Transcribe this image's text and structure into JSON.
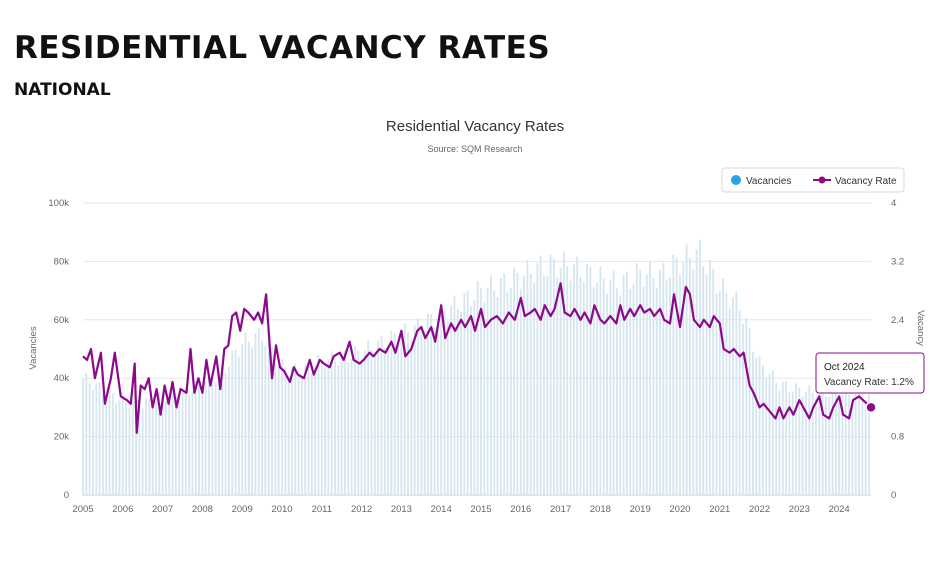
{
  "slide": {
    "title": "RESIDENTIAL VACANCY RATES",
    "subtitle": "NATIONAL"
  },
  "chart_data": {
    "type": "bar+line",
    "title": "Residential Vacancy Rates",
    "subtitle": "Source: SQM Research",
    "y_left_label": "Vacancies",
    "y_right_label": "Vacancy",
    "y_left_ticks": [
      "0",
      "20k",
      "40k",
      "60k",
      "80k",
      "100k"
    ],
    "y_right_ticks": [
      "0",
      "0.8",
      "1.6",
      "2.4",
      "3.2",
      "4"
    ],
    "y_left_range": [
      0,
      100000
    ],
    "y_right_range": [
      0,
      4
    ],
    "x_ticks": [
      "2005",
      "2006",
      "2007",
      "2008",
      "2009",
      "2010",
      "2011",
      "2012",
      "2013",
      "2014",
      "2015",
      "2016",
      "2017",
      "2018",
      "2019",
      "2020",
      "2021",
      "2022",
      "2023",
      "2024"
    ],
    "x_range": [
      2005,
      2024.8
    ],
    "legend": {
      "position": "top-right",
      "bar_label": "Vacancies",
      "line_label": "Vacancy Rate"
    },
    "colors": {
      "bar": "#d6e6f0",
      "line": "#8b0a8b",
      "legend_bar_dot": "#2aa0e8"
    },
    "tooltip": {
      "date": "Oct 2024",
      "series": "Vacancy Rate",
      "value": "1.2%"
    },
    "series": [
      {
        "name": "Vacancies",
        "kind": "bar",
        "points": [
          [
            2005,
            40000
          ],
          [
            2005.5,
            36000
          ],
          [
            2006,
            32000
          ],
          [
            2006.5,
            31000
          ],
          [
            2007,
            34000
          ],
          [
            2007.5,
            35000
          ],
          [
            2008,
            38000
          ],
          [
            2008.5,
            42000
          ],
          [
            2009,
            52000
          ],
          [
            2009.5,
            55000
          ],
          [
            2010,
            44000
          ],
          [
            2010.5,
            42000
          ],
          [
            2011,
            46000
          ],
          [
            2011.5,
            47000
          ],
          [
            2012,
            49000
          ],
          [
            2012.5,
            52000
          ],
          [
            2013,
            55000
          ],
          [
            2013.5,
            58000
          ],
          [
            2014,
            62000
          ],
          [
            2014.5,
            66000
          ],
          [
            2015,
            70000
          ],
          [
            2015.5,
            72000
          ],
          [
            2016,
            75000
          ],
          [
            2016.5,
            78000
          ],
          [
            2017,
            79000
          ],
          [
            2017.5,
            77000
          ],
          [
            2018,
            74000
          ],
          [
            2018.5,
            72000
          ],
          [
            2019,
            76000
          ],
          [
            2019.5,
            75000
          ],
          [
            2020,
            80000
          ],
          [
            2020.5,
            83000
          ],
          [
            2021,
            71000
          ],
          [
            2021.5,
            65000
          ],
          [
            2022,
            45000
          ],
          [
            2022.5,
            38000
          ],
          [
            2023,
            36000
          ],
          [
            2023.5,
            35000
          ],
          [
            2024,
            35000
          ],
          [
            2024.5,
            34000
          ],
          [
            2024.8,
            33000
          ]
        ]
      },
      {
        "name": "Vacancy Rate",
        "kind": "line",
        "points": [
          [
            2005,
            1.9
          ],
          [
            2005.1,
            1.85
          ],
          [
            2005.2,
            2.0
          ],
          [
            2005.3,
            1.6
          ],
          [
            2005.45,
            1.95
          ],
          [
            2005.55,
            1.25
          ],
          [
            2005.7,
            1.6
          ],
          [
            2005.8,
            1.95
          ],
          [
            2005.95,
            1.35
          ],
          [
            2006.1,
            1.3
          ],
          [
            2006.2,
            1.25
          ],
          [
            2006.3,
            1.8
          ],
          [
            2006.35,
            0.85
          ],
          [
            2006.45,
            1.5
          ],
          [
            2006.55,
            1.45
          ],
          [
            2006.65,
            1.6
          ],
          [
            2006.75,
            1.2
          ],
          [
            2006.85,
            1.45
          ],
          [
            2006.95,
            1.1
          ],
          [
            2007.05,
            1.5
          ],
          [
            2007.15,
            1.25
          ],
          [
            2007.25,
            1.55
          ],
          [
            2007.35,
            1.2
          ],
          [
            2007.45,
            1.45
          ],
          [
            2007.6,
            1.4
          ],
          [
            2007.7,
            2.0
          ],
          [
            2007.8,
            1.4
          ],
          [
            2007.9,
            1.6
          ],
          [
            2008.0,
            1.4
          ],
          [
            2008.1,
            1.85
          ],
          [
            2008.2,
            1.5
          ],
          [
            2008.35,
            1.9
          ],
          [
            2008.45,
            1.45
          ],
          [
            2008.55,
            2.0
          ],
          [
            2008.65,
            2.05
          ],
          [
            2008.75,
            2.45
          ],
          [
            2008.85,
            2.5
          ],
          [
            2008.95,
            2.25
          ],
          [
            2009.05,
            2.55
          ],
          [
            2009.15,
            2.5
          ],
          [
            2009.3,
            2.4
          ],
          [
            2009.4,
            2.5
          ],
          [
            2009.5,
            2.35
          ],
          [
            2009.6,
            2.75
          ],
          [
            2009.75,
            1.6
          ],
          [
            2009.85,
            2.05
          ],
          [
            2009.95,
            1.75
          ],
          [
            2010.05,
            1.7
          ],
          [
            2010.2,
            1.55
          ],
          [
            2010.3,
            1.75
          ],
          [
            2010.4,
            1.65
          ],
          [
            2010.55,
            1.6
          ],
          [
            2010.7,
            1.85
          ],
          [
            2010.8,
            1.65
          ],
          [
            2010.95,
            1.85
          ],
          [
            2011.05,
            1.8
          ],
          [
            2011.2,
            1.75
          ],
          [
            2011.3,
            1.9
          ],
          [
            2011.45,
            1.95
          ],
          [
            2011.55,
            1.85
          ],
          [
            2011.7,
            2.1
          ],
          [
            2011.8,
            1.85
          ],
          [
            2011.95,
            1.8
          ],
          [
            2012.05,
            1.85
          ],
          [
            2012.2,
            1.95
          ],
          [
            2012.3,
            1.9
          ],
          [
            2012.45,
            2.0
          ],
          [
            2012.6,
            1.95
          ],
          [
            2012.75,
            2.1
          ],
          [
            2012.85,
            1.95
          ],
          [
            2013.0,
            2.25
          ],
          [
            2013.1,
            1.9
          ],
          [
            2013.25,
            2.0
          ],
          [
            2013.4,
            2.25
          ],
          [
            2013.5,
            2.3
          ],
          [
            2013.6,
            2.15
          ],
          [
            2013.75,
            2.3
          ],
          [
            2013.85,
            2.1
          ],
          [
            2014.0,
            2.6
          ],
          [
            2014.1,
            2.15
          ],
          [
            2014.25,
            2.35
          ],
          [
            2014.35,
            2.25
          ],
          [
            2014.5,
            2.4
          ],
          [
            2014.6,
            2.3
          ],
          [
            2014.75,
            2.45
          ],
          [
            2014.85,
            2.25
          ],
          [
            2015.0,
            2.55
          ],
          [
            2015.1,
            2.3
          ],
          [
            2015.25,
            2.4
          ],
          [
            2015.4,
            2.45
          ],
          [
            2015.55,
            2.35
          ],
          [
            2015.7,
            2.5
          ],
          [
            2015.85,
            2.4
          ],
          [
            2016.0,
            2.7
          ],
          [
            2016.1,
            2.45
          ],
          [
            2016.25,
            2.5
          ],
          [
            2016.35,
            2.55
          ],
          [
            2016.5,
            2.4
          ],
          [
            2016.6,
            2.6
          ],
          [
            2016.75,
            2.45
          ],
          [
            2016.85,
            2.55
          ],
          [
            2017.0,
            2.9
          ],
          [
            2017.1,
            2.5
          ],
          [
            2017.25,
            2.45
          ],
          [
            2017.35,
            2.55
          ],
          [
            2017.5,
            2.4
          ],
          [
            2017.6,
            2.5
          ],
          [
            2017.75,
            2.35
          ],
          [
            2017.85,
            2.6
          ],
          [
            2018.0,
            2.4
          ],
          [
            2018.1,
            2.35
          ],
          [
            2018.25,
            2.45
          ],
          [
            2018.4,
            2.35
          ],
          [
            2018.5,
            2.6
          ],
          [
            2018.6,
            2.4
          ],
          [
            2018.75,
            2.55
          ],
          [
            2018.85,
            2.45
          ],
          [
            2019.0,
            2.6
          ],
          [
            2019.1,
            2.5
          ],
          [
            2019.25,
            2.55
          ],
          [
            2019.35,
            2.45
          ],
          [
            2019.5,
            2.55
          ],
          [
            2019.6,
            2.4
          ],
          [
            2019.75,
            2.35
          ],
          [
            2019.85,
            2.75
          ],
          [
            2020.0,
            2.3
          ],
          [
            2020.15,
            2.85
          ],
          [
            2020.25,
            2.75
          ],
          [
            2020.35,
            2.4
          ],
          [
            2020.5,
            2.3
          ],
          [
            2020.6,
            2.4
          ],
          [
            2020.75,
            2.3
          ],
          [
            2020.85,
            2.45
          ],
          [
            2021.0,
            2.35
          ],
          [
            2021.1,
            2.0
          ],
          [
            2021.25,
            1.95
          ],
          [
            2021.35,
            2.0
          ],
          [
            2021.5,
            1.9
          ],
          [
            2021.6,
            1.95
          ],
          [
            2021.75,
            1.5
          ],
          [
            2021.85,
            1.4
          ],
          [
            2022.0,
            1.2
          ],
          [
            2022.1,
            1.25
          ],
          [
            2022.25,
            1.15
          ],
          [
            2022.4,
            1.05
          ],
          [
            2022.5,
            1.2
          ],
          [
            2022.6,
            1.05
          ],
          [
            2022.75,
            1.2
          ],
          [
            2022.85,
            1.1
          ],
          [
            2023.0,
            1.3
          ],
          [
            2023.1,
            1.2
          ],
          [
            2023.25,
            1.05
          ],
          [
            2023.35,
            1.2
          ],
          [
            2023.5,
            1.35
          ],
          [
            2023.6,
            1.1
          ],
          [
            2023.75,
            1.05
          ],
          [
            2023.85,
            1.2
          ],
          [
            2024.0,
            1.35
          ],
          [
            2024.1,
            1.1
          ],
          [
            2024.25,
            1.05
          ],
          [
            2024.35,
            1.3
          ],
          [
            2024.5,
            1.35
          ],
          [
            2024.6,
            1.3
          ],
          [
            2024.8,
            1.2
          ]
        ]
      }
    ]
  }
}
